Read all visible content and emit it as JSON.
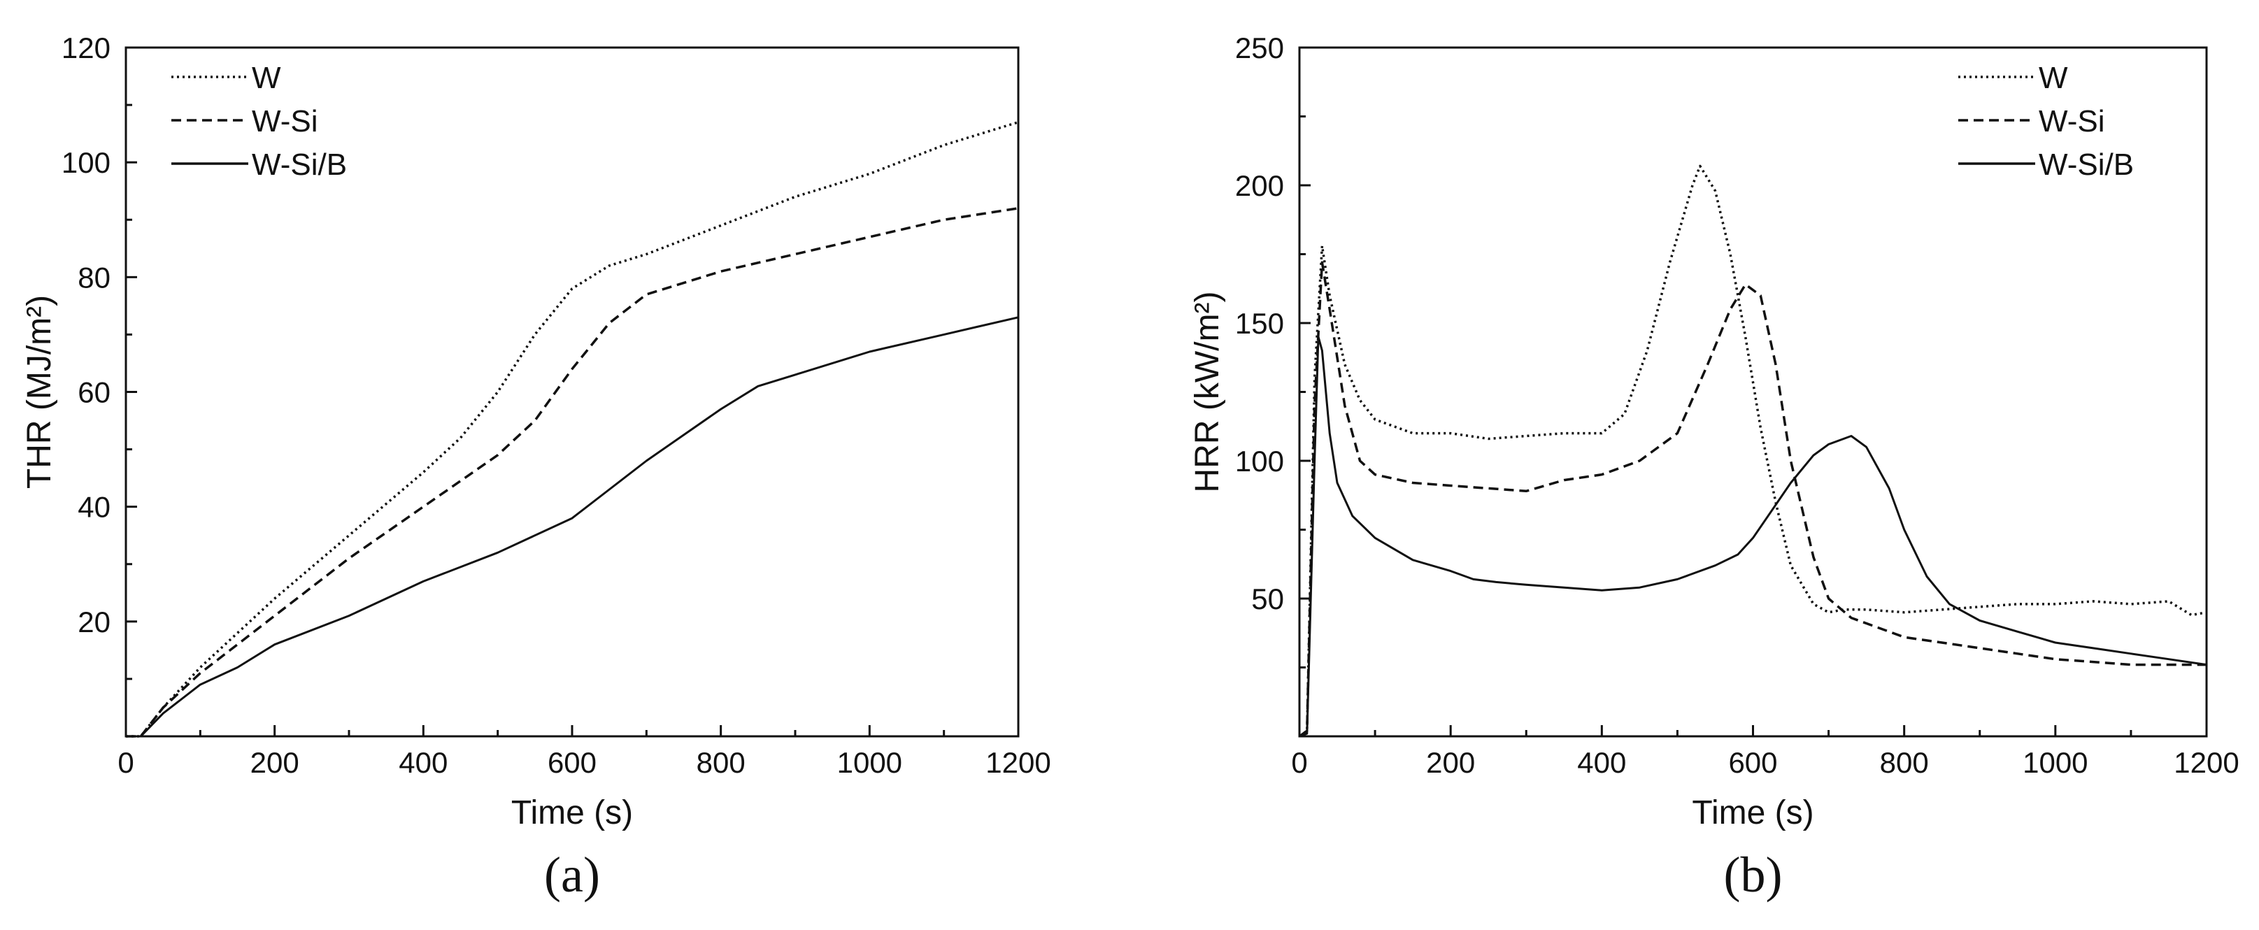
{
  "chart_data": [
    {
      "type": "line",
      "panel_label": "(a)",
      "xlabel": "Time (s)",
      "ylabel": "THR (MJ/m²)",
      "xlim": [
        0,
        1200
      ],
      "ylim": [
        0,
        120
      ],
      "xticks": [
        0,
        200,
        400,
        600,
        800,
        1000,
        1200
      ],
      "yticks": [
        20,
        40,
        60,
        80,
        100,
        120
      ],
      "legend_position": "top-left",
      "series": [
        {
          "name": "W",
          "style": "dotted",
          "x": [
            0,
            20,
            50,
            100,
            150,
            200,
            300,
            400,
            450,
            500,
            550,
            600,
            650,
            700,
            800,
            900,
            1000,
            1100,
            1200
          ],
          "y": [
            0,
            0,
            5,
            12,
            18,
            24,
            35,
            46,
            52,
            60,
            70,
            78,
            82,
            84,
            89,
            94,
            98,
            103,
            107
          ]
        },
        {
          "name": "W-Si",
          "style": "dashed",
          "x": [
            0,
            20,
            50,
            100,
            150,
            200,
            300,
            400,
            500,
            550,
            600,
            650,
            700,
            800,
            900,
            1000,
            1100,
            1200
          ],
          "y": [
            0,
            0,
            5,
            11,
            16,
            21,
            31,
            40,
            49,
            55,
            64,
            72,
            77,
            81,
            84,
            87,
            90,
            92
          ]
        },
        {
          "name": "W-Si/B",
          "style": "solid",
          "x": [
            0,
            20,
            50,
            100,
            150,
            200,
            300,
            400,
            500,
            600,
            650,
            700,
            800,
            850,
            900,
            1000,
            1100,
            1200
          ],
          "y": [
            0,
            0,
            4,
            9,
            12,
            16,
            21,
            27,
            32,
            38,
            43,
            48,
            57,
            61,
            63,
            67,
            70,
            73
          ]
        }
      ]
    },
    {
      "type": "line",
      "panel_label": "(b)",
      "xlabel": "Time (s)",
      "ylabel": "HRR (kW/m²)",
      "xlim": [
        0,
        1200
      ],
      "ylim": [
        0,
        250
      ],
      "xticks": [
        0,
        200,
        400,
        600,
        800,
        1000,
        1200
      ],
      "yticks": [
        50,
        100,
        150,
        200,
        250
      ],
      "legend_position": "top-right",
      "series": [
        {
          "name": "W",
          "style": "dotted",
          "x": [
            0,
            10,
            20,
            30,
            40,
            60,
            80,
            100,
            150,
            200,
            250,
            300,
            350,
            400,
            430,
            460,
            490,
            520,
            530,
            550,
            570,
            590,
            610,
            630,
            650,
            680,
            700,
            720,
            750,
            800,
            850,
            900,
            950,
            1000,
            1050,
            1100,
            1150,
            1180,
            1200
          ],
          "y": [
            0,
            2,
            130,
            178,
            160,
            135,
            122,
            115,
            110,
            110,
            108,
            109,
            110,
            110,
            117,
            140,
            172,
            200,
            207,
            198,
            175,
            145,
            112,
            85,
            62,
            48,
            45,
            46,
            46,
            45,
            46,
            47,
            48,
            48,
            49,
            48,
            49,
            44,
            45
          ]
        },
        {
          "name": "W-Si",
          "style": "dashed",
          "x": [
            0,
            10,
            20,
            30,
            40,
            60,
            80,
            100,
            150,
            200,
            250,
            300,
            350,
            400,
            450,
            500,
            540,
            570,
            590,
            610,
            630,
            650,
            680,
            700,
            730,
            760,
            800,
            850,
            900,
            950,
            1000,
            1050,
            1100,
            1150,
            1200
          ],
          "y": [
            0,
            2,
            120,
            172,
            155,
            120,
            100,
            95,
            92,
            91,
            90,
            89,
            93,
            95,
            100,
            110,
            135,
            155,
            164,
            160,
            135,
            100,
            65,
            50,
            43,
            40,
            36,
            34,
            32,
            30,
            28,
            27,
            26,
            26,
            26
          ]
        },
        {
          "name": "W-Si/B",
          "style": "solid",
          "x": [
            0,
            10,
            20,
            25,
            30,
            40,
            50,
            70,
            100,
            150,
            200,
            230,
            260,
            300,
            350,
            400,
            450,
            500,
            550,
            580,
            600,
            620,
            650,
            680,
            700,
            730,
            750,
            780,
            800,
            830,
            860,
            900,
            950,
            1000,
            1050,
            1100,
            1150,
            1200
          ],
          "y": [
            0,
            1,
            100,
            145,
            140,
            110,
            92,
            80,
            72,
            64,
            60,
            57,
            56,
            55,
            54,
            53,
            54,
            57,
            62,
            66,
            72,
            80,
            92,
            102,
            106,
            109,
            105,
            90,
            75,
            58,
            48,
            42,
            38,
            34,
            32,
            30,
            28,
            26
          ]
        }
      ]
    }
  ]
}
